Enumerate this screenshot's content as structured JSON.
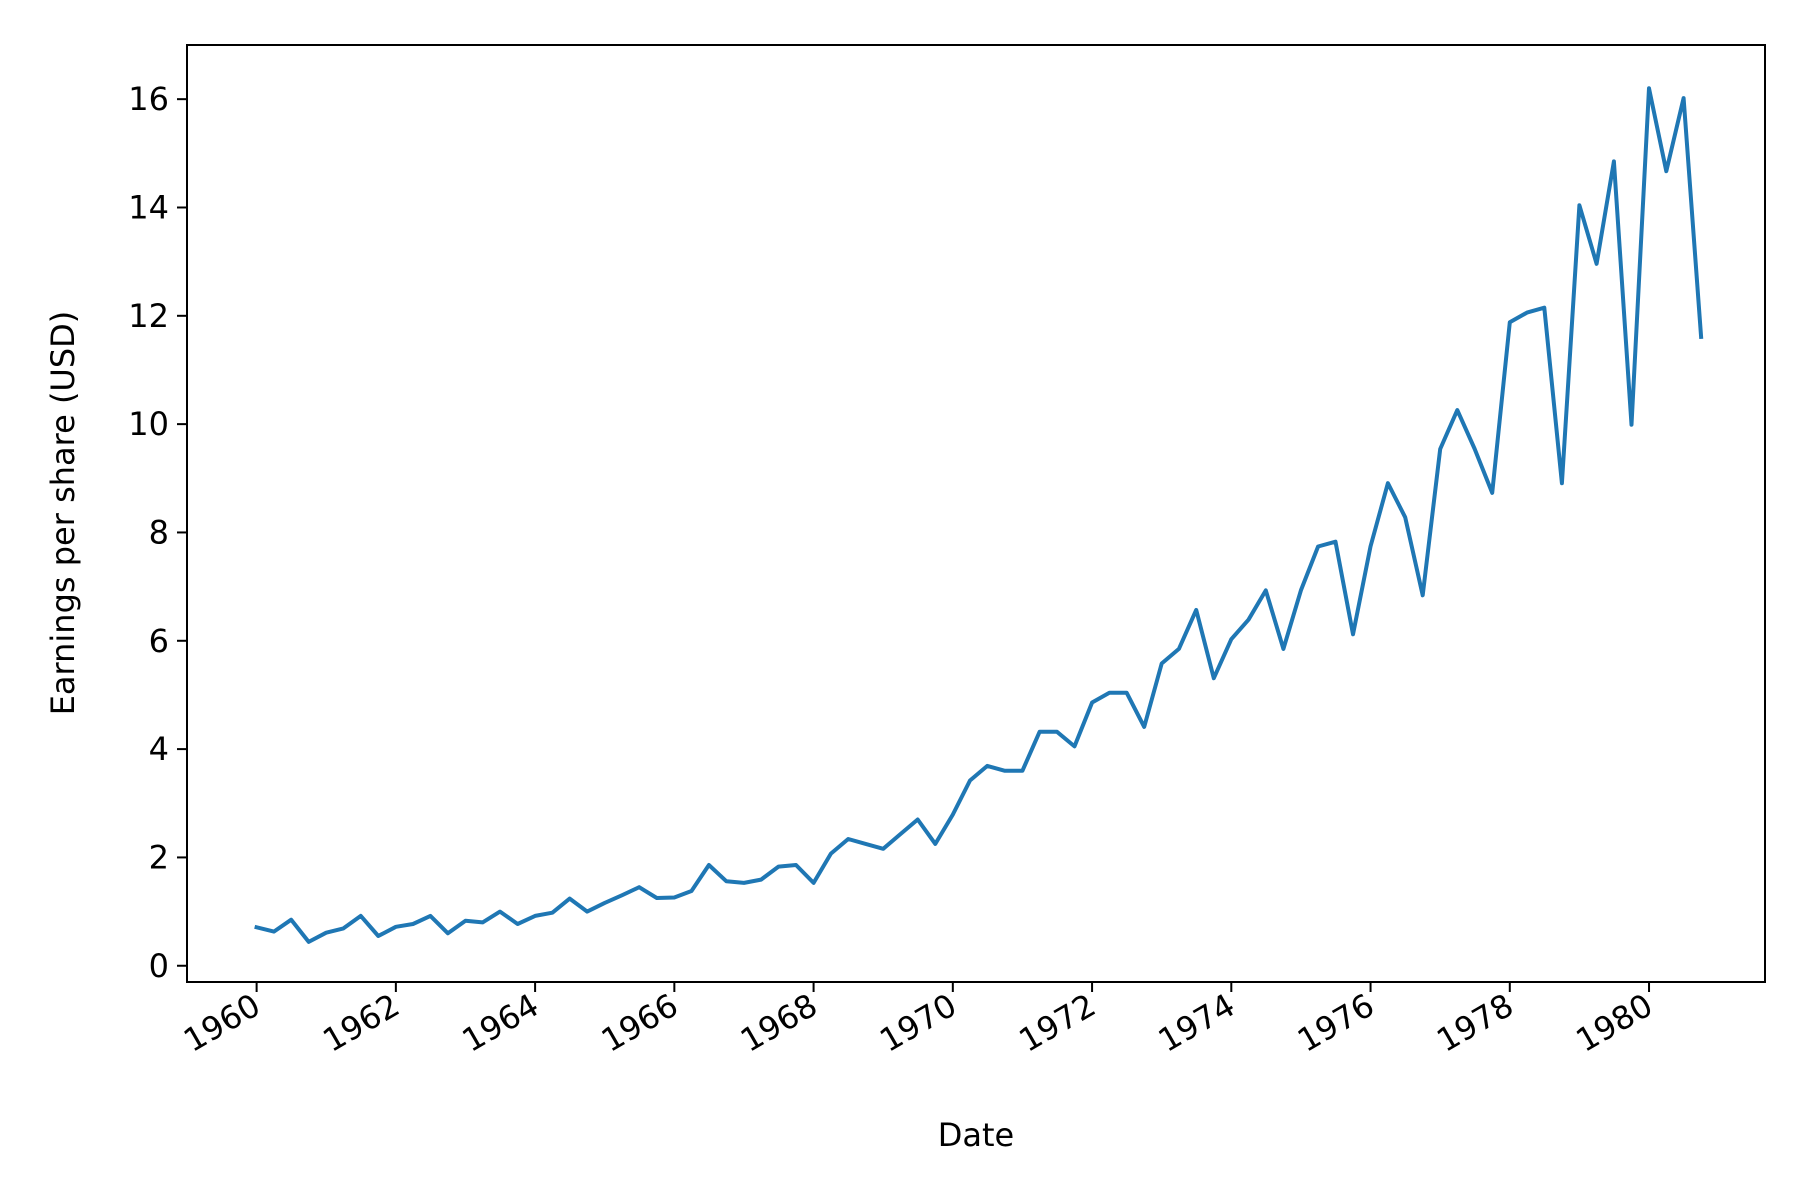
{
  "chart_data": {
    "type": "line",
    "title": "",
    "xlabel": "Date",
    "ylabel": "Earnings per share (USD)",
    "xlim": [
      "1959-01-01",
      "1981-09-01"
    ],
    "ylim": [
      -0.3,
      17.0
    ],
    "grid": false,
    "legend": "none",
    "line_color": "#1f77b4",
    "x_ticks": [
      "1960",
      "1962",
      "1964",
      "1966",
      "1968",
      "1970",
      "1972",
      "1974",
      "1976",
      "1978",
      "1980"
    ],
    "y_ticks": [
      "0",
      "2",
      "4",
      "6",
      "8",
      "10",
      "12",
      "14",
      "16"
    ],
    "series": [
      {
        "x": [
          "1960-01-01",
          "1960-04-01",
          "1960-07-01",
          "1960-10-01",
          "1961-01-01",
          "1961-04-01",
          "1961-07-01",
          "1961-10-01",
          "1962-01-01",
          "1962-04-01",
          "1962-07-01",
          "1962-10-01",
          "1963-01-01",
          "1963-04-01",
          "1963-07-01",
          "1963-10-01",
          "1964-01-01",
          "1964-04-01",
          "1964-07-01",
          "1964-10-01",
          "1965-01-01",
          "1965-04-01",
          "1965-07-01",
          "1965-10-01",
          "1966-01-01",
          "1966-04-01",
          "1966-07-01",
          "1966-10-01",
          "1967-01-01",
          "1967-04-01",
          "1967-07-01",
          "1967-10-01",
          "1968-01-01",
          "1968-04-01",
          "1968-07-01",
          "1968-10-01",
          "1969-01-01",
          "1969-04-01",
          "1969-07-01",
          "1969-10-01",
          "1970-01-01",
          "1970-04-01",
          "1970-07-01",
          "1970-10-01",
          "1971-01-01",
          "1971-04-01",
          "1971-07-01",
          "1971-10-01",
          "1972-01-01",
          "1972-04-01",
          "1972-07-01",
          "1972-10-01",
          "1973-01-01",
          "1973-04-01",
          "1973-07-01",
          "1973-10-01",
          "1974-01-01",
          "1974-04-01",
          "1974-07-01",
          "1974-10-01",
          "1975-01-01",
          "1975-04-01",
          "1975-07-01",
          "1975-10-01",
          "1976-01-01",
          "1976-04-01",
          "1976-07-01",
          "1976-10-01",
          "1977-01-01",
          "1977-04-01",
          "1977-07-01",
          "1977-10-01",
          "1978-01-01",
          "1978-04-01",
          "1978-07-01",
          "1978-10-01",
          "1979-01-01",
          "1979-04-01",
          "1979-07-01",
          "1979-10-01",
          "1980-01-01",
          "1980-04-01",
          "1980-07-01",
          "1980-10-01"
        ],
        "values": [
          0.71,
          0.63,
          0.85,
          0.44,
          0.61,
          0.69,
          0.92,
          0.55,
          0.72,
          0.77,
          0.92,
          0.6,
          0.83,
          0.8,
          1.0,
          0.77,
          0.92,
          0.98,
          1.24,
          1.0,
          1.16,
          1.3,
          1.45,
          1.25,
          1.26,
          1.38,
          1.86,
          1.56,
          1.53,
          1.59,
          1.83,
          1.86,
          1.53,
          2.07,
          2.34,
          2.25,
          2.16,
          2.43,
          2.7,
          2.25,
          2.79,
          3.42,
          3.69,
          3.6,
          3.6,
          4.32,
          4.32,
          4.05,
          4.86,
          5.04,
          5.04,
          4.41,
          5.58,
          5.85,
          6.57,
          5.31,
          6.03,
          6.39,
          6.93,
          5.85,
          6.93,
          7.74,
          7.83,
          6.12,
          7.74,
          8.91,
          8.28,
          6.84,
          9.54,
          10.26,
          9.54,
          8.73,
          11.88,
          12.06,
          12.15,
          8.91,
          14.04,
          12.96,
          14.85,
          9.99,
          16.2,
          14.67,
          16.02,
          11.61
        ]
      }
    ]
  }
}
